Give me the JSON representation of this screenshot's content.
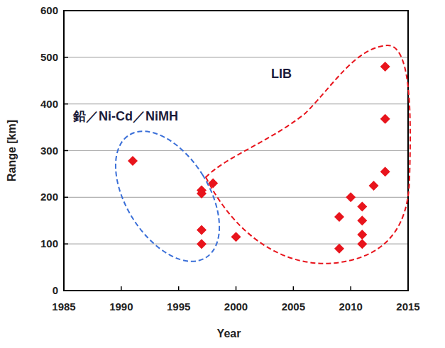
{
  "chart_data": {
    "type": "scatter",
    "x_label": "Year",
    "y_label": "Range [km]",
    "x": [
      1991,
      1997,
      1997,
      1997,
      1997,
      1998,
      2000,
      2009,
      2009,
      2010,
      2011,
      2011,
      2011,
      2011,
      2012,
      2013,
      2013,
      2013
    ],
    "values": [
      278,
      215,
      208,
      130,
      100,
      230,
      115,
      158,
      90,
      200,
      180,
      150,
      120,
      100,
      225,
      480,
      368,
      255
    ],
    "color": "#e8141c",
    "marker": "diamond",
    "xlim": [
      1985,
      2015
    ],
    "xticks": [
      1985,
      1990,
      1995,
      2000,
      2005,
      2010,
      2015
    ],
    "ylim": [
      0,
      600
    ],
    "yticks": [
      0,
      100,
      200,
      300,
      400,
      500,
      600
    ],
    "grid": true,
    "annotations": [
      {
        "text": "LIB",
        "color": "#e8141c"
      },
      {
        "text": "鉛／Ni-Cd／NiMH",
        "color": "#3a6fd8"
      }
    ]
  }
}
